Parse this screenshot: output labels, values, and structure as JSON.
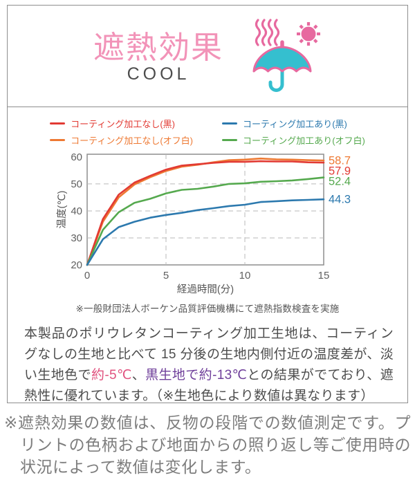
{
  "palette": {
    "title_pink": "#f293b8",
    "icon_pink": "#e7699f",
    "icon_teal": "#35bfcf",
    "text_dark": "#4c4c4c",
    "text_gray": "#7d7d7d",
    "border_gray": "#8e8e8e",
    "highlight_pink": "#e0517e",
    "highlight_purple": "#6f3f9a"
  },
  "header": {
    "title": "遮熱効果",
    "subtitle": "COOL"
  },
  "chart_data": {
    "type": "line",
    "xlabel": "経過時間(分)",
    "ylabel": "温度(℃)",
    "x": [
      0,
      1,
      2,
      3,
      4,
      5,
      6,
      7,
      8,
      9,
      10,
      11,
      12,
      13,
      14,
      15
    ],
    "xticks": [
      0,
      5,
      10,
      15
    ],
    "yticks": [
      20,
      30,
      40,
      50,
      60
    ],
    "xlim": [
      0,
      15
    ],
    "ylim": [
      20,
      61
    ],
    "grid": "dashed",
    "grid_x": [
      5,
      10
    ],
    "grid_y": [
      30,
      40,
      50
    ],
    "legend_position": "top",
    "legend_order": [
      0,
      2,
      1,
      3
    ],
    "draw_order": [
      1,
      0,
      3,
      2
    ],
    "series": [
      {
        "name": "コーティング加工なし(黒)",
        "color": "#e23a33",
        "end_label": "57.9",
        "values": [
          20,
          37,
          46,
          50.5,
          53,
          55.3,
          56.8,
          57.3,
          57.8,
          58.2,
          58.2,
          58.4,
          58.3,
          58.3,
          58.0,
          57.9
        ]
      },
      {
        "name": "コーティング加工なし(オフ白)",
        "color": "#ee7933",
        "end_label": "58.7",
        "values": [
          20,
          36,
          45,
          49.8,
          52.5,
          54.8,
          56.4,
          57.1,
          58.0,
          58.8,
          59.0,
          59.4,
          59.1,
          59.0,
          58.8,
          58.7
        ]
      },
      {
        "name": "コーティング加工あり(黒)",
        "color": "#2c79ae",
        "end_label": "44.3",
        "values": [
          20,
          29.5,
          34,
          36,
          37.5,
          38.5,
          39.3,
          40.3,
          41,
          41.8,
          42.3,
          43.3,
          43.6,
          43.9,
          44.1,
          44.3
        ]
      },
      {
        "name": "コーティング加工あり(オフ白)",
        "color": "#55a94e",
        "end_label": "52.4",
        "values": [
          20,
          33,
          39.5,
          43,
          44.5,
          46.5,
          47.8,
          48.2,
          49,
          50,
          50.2,
          50.8,
          51,
          51.3,
          51.8,
          52.4
        ]
      }
    ]
  },
  "chart_note": "※一般財団法人ボーケン品質評価機構にて遮熱指数検査を実施",
  "description": {
    "segments": [
      {
        "text": "本製品のポリウレタンコーティング加工生地は、コーティングなしの生地と比べて 15 分後の生地内側付近の温度差が、淡い生地色で",
        "style": "normal"
      },
      {
        "text": "約-5℃",
        "style": "pink"
      },
      {
        "text": "、",
        "style": "normal"
      },
      {
        "text": "黒生地で約-13℃",
        "style": "purple"
      },
      {
        "text": "との結果がでており、遮熱性に優れています。（※生地色により数値は異なります）",
        "style": "normal"
      }
    ]
  },
  "footnote": {
    "marker": "※",
    "text": "遮熱効果の数値は、反物の段階での数値測定です。プリントの色柄および地面からの照り返し等ご使用時の状況によって数値は変化します。"
  }
}
